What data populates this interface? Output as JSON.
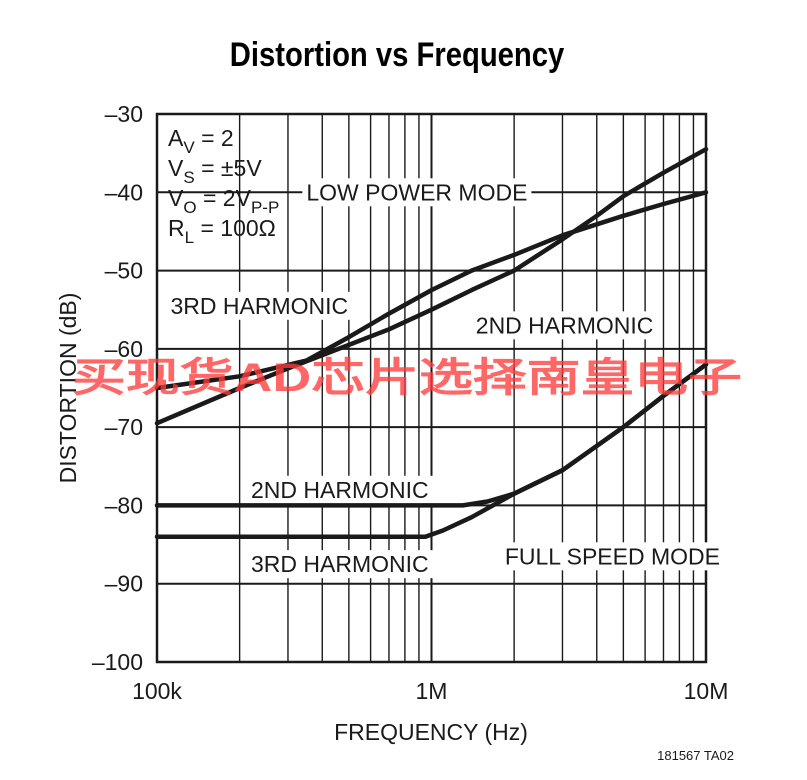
{
  "chart_data": {
    "type": "line",
    "title": "Distortion vs Frequency",
    "xlabel": "FREQUENCY (Hz)",
    "ylabel": "DISTORTION (dB)",
    "x_scale": "log",
    "xlim": [
      100000,
      10000000
    ],
    "ylim": [
      -100,
      -30
    ],
    "x_ticks": [
      {
        "value": 100000,
        "label": "100k"
      },
      {
        "value": 1000000,
        "label": "1M"
      },
      {
        "value": 10000000,
        "label": "10M"
      }
    ],
    "y_ticks": [
      {
        "value": -30,
        "label": "–30"
      },
      {
        "value": -40,
        "label": "–40"
      },
      {
        "value": -50,
        "label": "–50"
      },
      {
        "value": -60,
        "label": "–60"
      },
      {
        "value": -70,
        "label": "–70"
      },
      {
        "value": -80,
        "label": "–80"
      },
      {
        "value": -90,
        "label": "–90"
      },
      {
        "value": -100,
        "label": "–100"
      }
    ],
    "grid": true,
    "conditions": [
      {
        "main": "A",
        "sub": "V",
        "rest": " = 2"
      },
      {
        "main": "V",
        "sub": "S",
        "rest": " = ±5V"
      },
      {
        "main": "V",
        "sub": "O",
        "rest": " = 2V",
        "sub2": "P-P"
      },
      {
        "main": "R",
        "sub": "L",
        "rest": " = 100Ω"
      }
    ],
    "series": [
      {
        "id": "low-3rd",
        "x": [
          100000,
          200000,
          350000,
          500000,
          700000,
          1000000,
          1400000,
          2000000,
          3000000,
          5000000,
          7000000,
          10000000
        ],
        "y": [
          -65,
          -63.5,
          -61.5,
          -58.5,
          -55.5,
          -52.5,
          -50,
          -48,
          -45.5,
          -43,
          -41.5,
          -40
        ]
      },
      {
        "id": "low-2nd",
        "x": [
          100000,
          200000,
          300000,
          500000,
          700000,
          1000000,
          1400000,
          2000000,
          3000000,
          4000000,
          5000000,
          7000000,
          10000000
        ],
        "y": [
          -69.5,
          -65,
          -62.5,
          -59.5,
          -57.5,
          -55,
          -52.5,
          -50,
          -46,
          -43,
          -40.5,
          -37.5,
          -34.5
        ]
      },
      {
        "id": "full-2nd",
        "x": [
          100000,
          500000,
          1000000,
          1300000,
          1600000,
          2000000,
          3000000,
          5000000,
          7000000,
          10000000
        ],
        "y": [
          -80,
          -80,
          -80,
          -80,
          -79.5,
          -78.5,
          -75.5,
          -70,
          -66,
          -62
        ]
      },
      {
        "id": "full-3rd",
        "x": [
          100000,
          500000,
          950000,
          1100000,
          1400000,
          2000000,
          3000000,
          5000000,
          7000000,
          10000000
        ],
        "y": [
          -84,
          -84,
          -84,
          -83.2,
          -81.5,
          -78.5,
          -75.5,
          -70,
          -66,
          -62
        ]
      }
    ],
    "annotations": [
      {
        "text": "LOW POWER MODE",
        "x": 350000,
        "y": -40
      },
      {
        "text": "3RD HARMONIC",
        "x": 112000,
        "y": -54.5
      },
      {
        "text": "2ND HARMONIC",
        "x": 1450000,
        "y": -57
      },
      {
        "text": "2ND HARMONIC",
        "x": 220000,
        "y": -78
      },
      {
        "text": "3RD HARMONIC",
        "x": 220000,
        "y": -87.5
      },
      {
        "text": "FULL SPEED MODE",
        "x": 1850000,
        "y": -86.5
      }
    ],
    "figure_id": "181567 TA02"
  },
  "watermark": "买现货AD芯片选择南皇电子"
}
